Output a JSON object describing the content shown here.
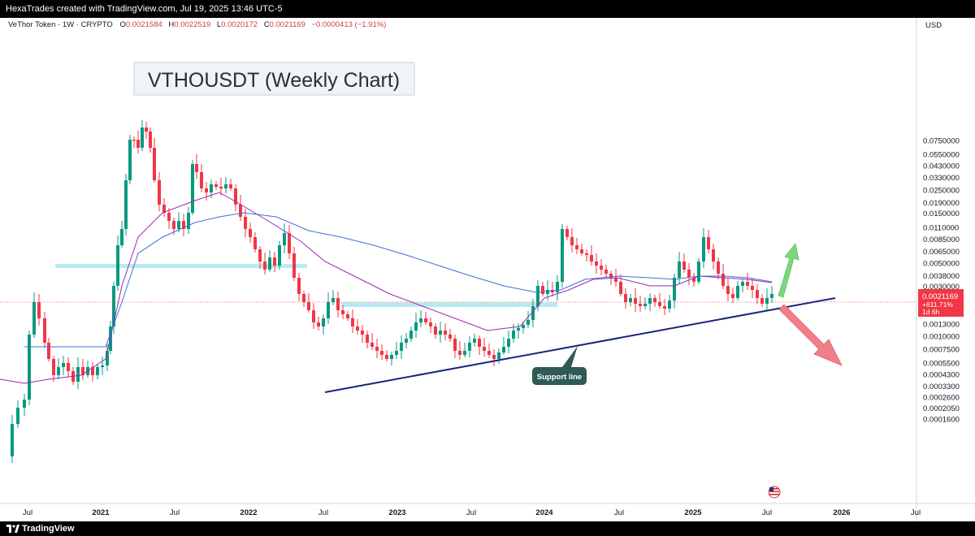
{
  "header": {
    "attribution": "HexaTrades created with TradingView.com, Jul 19, 2025 13:46 UTC-5"
  },
  "legend": {
    "symbol": "VeThor Token · 1W · CRYPTO",
    "open_label": "O",
    "open": "0.0021584",
    "high_label": "H",
    "high": "0.0022519",
    "low_label": "L",
    "low": "0.0020172",
    "close_label": "C",
    "close": "0.0021169",
    "change": "−0.0000413 (−1.91%)"
  },
  "footer": {
    "brand": "TradingView"
  },
  "chart_data": {
    "type": "candlestick",
    "title": "VTHOUSDT (Weekly Chart)",
    "axis_currency": "USD",
    "y_scale": "log",
    "x_tick_labels": [
      "Jul",
      "2021",
      "Jul",
      "2022",
      "Jul",
      "2023",
      "Jul",
      "2024",
      "Jul",
      "2025",
      "Jul",
      "2026",
      "Jul"
    ],
    "y_tick_labels": [
      "0.0750000",
      "0.0550000",
      "0.0430000",
      "0.0330000",
      "0.0250000",
      "0.0190000",
      "0.0150000",
      "0.0110000",
      "0.0085000",
      "0.0065000",
      "0.0050000",
      "0.0038000",
      "0.0030000",
      "0.0013000",
      "0.0010000",
      "0.0007500",
      "0.0005500",
      "0.0004300",
      "0.0003300",
      "0.0002600",
      "0.0002050",
      "0.0001600"
    ],
    "last_price": {
      "value": "0.0021169",
      "change_pct": "+611.71%",
      "countdown": "1d 6h",
      "color": "#f23645"
    },
    "annotations": [
      {
        "kind": "label",
        "text": "Support line"
      },
      {
        "kind": "trendline",
        "name": "support line",
        "color": "#1a237e"
      },
      {
        "kind": "zone",
        "name": "resistance zone 2021",
        "price_low": 0.0045,
        "price_high": 0.0049,
        "color": "#a9e6f0"
      },
      {
        "kind": "zone",
        "name": "zone 2023",
        "price_low": 0.0019,
        "price_high": 0.0021,
        "color": "#a9e6f0"
      },
      {
        "kind": "arrow",
        "name": "bullish scenario",
        "color": "#7dd87d"
      },
      {
        "kind": "arrow",
        "name": "bearish scenario",
        "color": "#f07f8a"
      }
    ],
    "moving_averages": [
      {
        "color": "#9c27b0"
      },
      {
        "color": "#3f6fd8"
      }
    ],
    "colors": {
      "up": "#089981",
      "down": "#f23645"
    }
  }
}
